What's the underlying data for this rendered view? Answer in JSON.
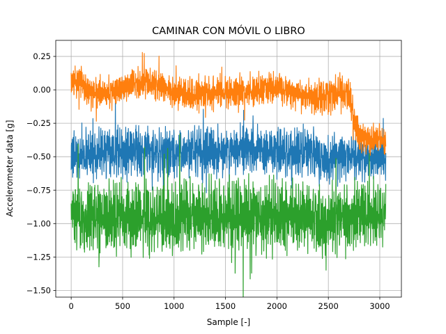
{
  "chart_data": {
    "type": "line",
    "title": "CAMINAR CON MÓVIL O LIBRO",
    "xlabel": "Sample [-]",
    "ylabel": "Accelerometer data [g]",
    "xlim": [
      -150,
      3210
    ],
    "ylim": [
      -1.55,
      0.37
    ],
    "xticks": [
      0,
      500,
      1000,
      1500,
      2000,
      2500,
      3000
    ],
    "xtick_labels": [
      "0",
      "500",
      "1000",
      "1500",
      "2000",
      "2500",
      "3000"
    ],
    "yticks": [
      0.25,
      0.0,
      -0.25,
      -0.5,
      -0.75,
      -1.0,
      -1.25,
      -1.5
    ],
    "ytick_labels": [
      "0.25",
      "0.00",
      "−0.25",
      "−0.50",
      "−0.75",
      "−1.00",
      "−1.25",
      "−1.50"
    ],
    "grid": true,
    "legend": "none",
    "n_samples": 3060,
    "series": [
      {
        "color": "#1f77b4",
        "x": [
          0,
          100,
          200,
          300,
          400,
          500,
          600,
          700,
          800,
          900,
          1000,
          1100,
          1200,
          1300,
          1400,
          1500,
          1600,
          1700,
          1800,
          1900,
          2000,
          2100,
          2200,
          2300,
          2400,
          2500,
          2600,
          2700,
          2800,
          2900,
          3000,
          3060
        ],
        "y": [
          -0.5,
          -0.5,
          -0.49,
          -0.48,
          -0.48,
          -0.47,
          -0.46,
          -0.46,
          -0.46,
          -0.47,
          -0.48,
          -0.47,
          -0.46,
          -0.46,
          -0.46,
          -0.46,
          -0.46,
          -0.45,
          -0.45,
          -0.46,
          -0.46,
          -0.47,
          -0.47,
          -0.46,
          -0.5,
          -0.52,
          -0.49,
          -0.47,
          -0.5,
          -0.52,
          -0.5,
          -0.5
        ],
        "band": [
          0.18,
          0.18,
          0.18,
          0.18,
          0.18,
          0.18,
          0.17,
          0.17,
          0.17,
          0.17,
          0.17,
          0.17,
          0.17,
          0.17,
          0.17,
          0.17,
          0.17,
          0.17,
          0.17,
          0.17,
          0.17,
          0.17,
          0.17,
          0.17,
          0.18,
          0.18,
          0.18,
          0.16,
          0.15,
          0.15,
          0.14,
          0.14
        ]
      },
      {
        "color": "#2ca02c",
        "x": [
          0,
          100,
          200,
          300,
          400,
          500,
          600,
          700,
          800,
          900,
          1000,
          1100,
          1200,
          1300,
          1400,
          1500,
          1600,
          1700,
          1800,
          1900,
          2000,
          2100,
          2200,
          2300,
          2400,
          2500,
          2600,
          2700,
          2800,
          2900,
          3000,
          3060
        ],
        "y": [
          -0.92,
          -0.93,
          -0.95,
          -0.96,
          -0.96,
          -0.95,
          -0.96,
          -0.94,
          -0.95,
          -0.95,
          -0.95,
          -0.94,
          -0.95,
          -0.94,
          -0.95,
          -0.95,
          -0.94,
          -0.95,
          -0.94,
          -0.95,
          -0.95,
          -0.94,
          -0.95,
          -0.94,
          -0.96,
          -0.97,
          -0.96,
          -0.95,
          -0.92,
          -0.93,
          -0.93,
          -0.92
        ],
        "band": [
          0.22,
          0.24,
          0.25,
          0.25,
          0.25,
          0.25,
          0.25,
          0.25,
          0.25,
          0.25,
          0.25,
          0.25,
          0.25,
          0.25,
          0.25,
          0.25,
          0.25,
          0.25,
          0.25,
          0.25,
          0.25,
          0.25,
          0.25,
          0.25,
          0.25,
          0.25,
          0.25,
          0.24,
          0.23,
          0.22,
          0.22,
          0.22
        ]
      },
      {
        "color": "#ff7f0e",
        "x": [
          0,
          100,
          200,
          300,
          400,
          500,
          600,
          700,
          800,
          900,
          1000,
          1100,
          1200,
          1300,
          1400,
          1500,
          1600,
          1700,
          1800,
          1900,
          2000,
          2100,
          2200,
          2300,
          2400,
          2500,
          2600,
          2700,
          2750,
          2800,
          2900,
          3000,
          3060
        ],
        "y": [
          0.08,
          0.05,
          -0.03,
          -0.02,
          -0.02,
          0.02,
          0.05,
          0.06,
          0.05,
          0.02,
          -0.02,
          -0.03,
          -0.04,
          -0.04,
          -0.03,
          -0.02,
          -0.02,
          -0.01,
          0.0,
          0.02,
          0.02,
          0.0,
          -0.03,
          -0.05,
          -0.06,
          -0.05,
          -0.02,
          -0.02,
          -0.22,
          -0.35,
          -0.38,
          -0.36,
          -0.4
        ],
        "band": [
          0.11,
          0.11,
          0.11,
          0.11,
          0.11,
          0.11,
          0.11,
          0.11,
          0.11,
          0.11,
          0.11,
          0.11,
          0.11,
          0.11,
          0.11,
          0.11,
          0.11,
          0.11,
          0.11,
          0.11,
          0.11,
          0.11,
          0.11,
          0.11,
          0.12,
          0.12,
          0.12,
          0.12,
          0.12,
          0.1,
          0.1,
          0.1,
          0.1
        ]
      }
    ]
  }
}
